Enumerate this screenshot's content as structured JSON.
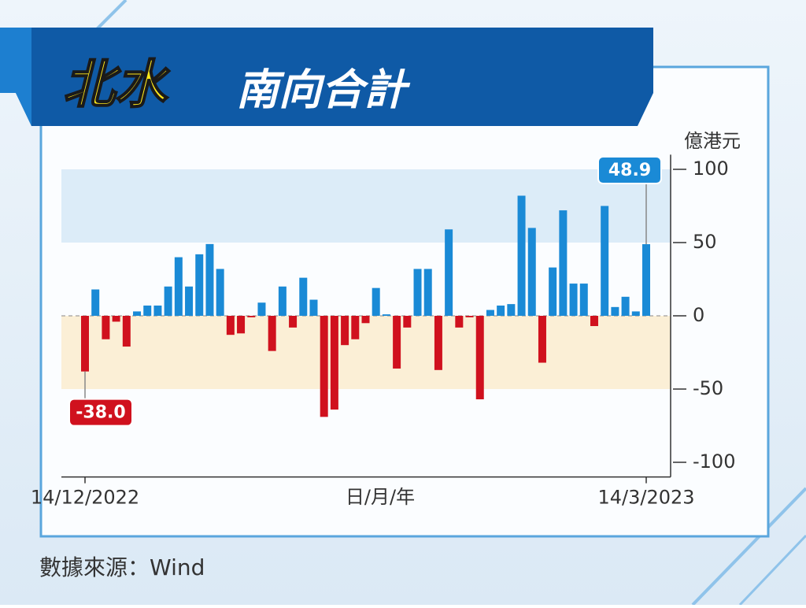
{
  "header": {
    "title_highlight": "北水",
    "title_rest": "南向合計"
  },
  "source": "數據來源：Wind",
  "chart_data": {
    "type": "bar",
    "unit": "億港元",
    "x_label": "日/月/年",
    "categories": [
      "14/12/2022",
      null,
      null,
      null,
      null,
      null,
      null,
      null,
      null,
      null,
      null,
      null,
      null,
      null,
      null,
      null,
      null,
      null,
      null,
      null,
      null,
      null,
      null,
      null,
      null,
      null,
      null,
      null,
      null,
      null,
      null,
      null,
      null,
      null,
      null,
      null,
      null,
      null,
      null,
      null,
      null,
      null,
      null,
      null,
      null,
      null,
      null,
      null,
      null,
      null,
      null,
      null,
      null,
      null,
      "14/3/2023"
    ],
    "values": [
      -38.0,
      18,
      -16,
      -4,
      -21,
      3,
      7,
      7,
      20,
      40,
      20,
      42,
      49,
      32,
      -13,
      -12,
      -1,
      9,
      -24,
      20,
      -8,
      26,
      11,
      -69,
      -64,
      -20,
      -16,
      -5,
      19,
      1,
      -36,
      -8,
      32,
      32,
      -37,
      59,
      -8,
      -1,
      -57,
      4,
      7,
      8,
      82,
      60,
      -32,
      33,
      72,
      22,
      22,
      -7,
      75,
      6,
      13,
      3,
      48.9
    ],
    "value_labels": [
      "-38.0",
      null,
      null,
      null,
      null,
      null,
      null,
      null,
      null,
      null,
      null,
      null,
      null,
      null,
      null,
      null,
      null,
      null,
      null,
      null,
      null,
      null,
      null,
      null,
      null,
      null,
      null,
      null,
      null,
      null,
      null,
      null,
      null,
      null,
      null,
      null,
      null,
      null,
      null,
      null,
      null,
      null,
      null,
      null,
      null,
      null,
      null,
      null,
      null,
      null,
      null,
      null,
      null,
      null,
      "48.9"
    ],
    "colors": {
      "positive": "#1a8ad6",
      "negative": "#d0111e"
    },
    "ylim": [
      -110,
      110
    ],
    "yticks": [
      100,
      50,
      0,
      -50,
      -100
    ]
  }
}
